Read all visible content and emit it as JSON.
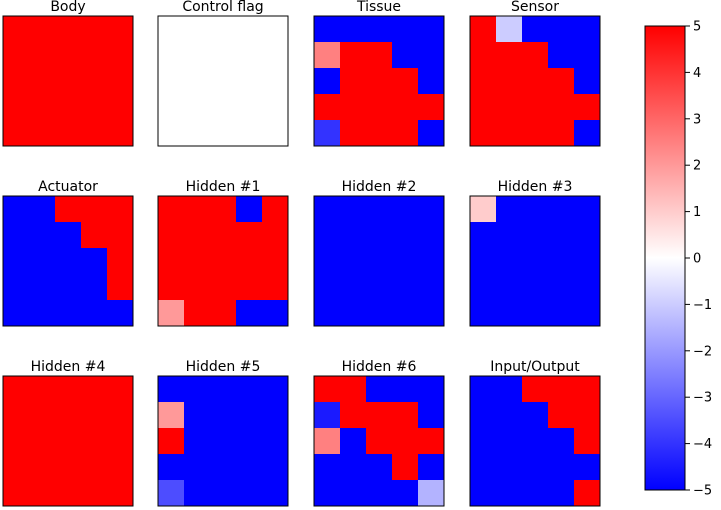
{
  "chart_data": {
    "type": "heatmap",
    "colormap": "bwr",
    "value_range": [
      -5,
      5
    ],
    "colors": {
      "low": "#0000ff",
      "mid": "#ffffff",
      "high": "#ff0000"
    },
    "colorbar": {
      "ticks": [
        5,
        4,
        3,
        2,
        1,
        0,
        -1,
        -2,
        -3,
        -4,
        -5
      ],
      "tick_labels": [
        "5",
        "4",
        "3",
        "2",
        "1",
        "0",
        "−1",
        "−2",
        "−3",
        "−4",
        "−5"
      ]
    },
    "panels": [
      {
        "title": "Body",
        "grid": [
          [
            5,
            5,
            5,
            5,
            5
          ],
          [
            5,
            5,
            5,
            5,
            5
          ],
          [
            5,
            5,
            5,
            5,
            5
          ],
          [
            5,
            5,
            5,
            5,
            5
          ],
          [
            5,
            5,
            5,
            5,
            5
          ]
        ]
      },
      {
        "title": "Control flag",
        "grid": [
          [
            0,
            0,
            0,
            0,
            0
          ],
          [
            0,
            0,
            0,
            0,
            0
          ],
          [
            0,
            0,
            0,
            0,
            0
          ],
          [
            0,
            0,
            0,
            0,
            0
          ],
          [
            0,
            0,
            0,
            0,
            0
          ]
        ]
      },
      {
        "title": "Tissue",
        "grid": [
          [
            -5,
            -5,
            -5,
            -5,
            -5
          ],
          [
            2.5,
            5,
            5,
            -5,
            -5
          ],
          [
            -5,
            5,
            5,
            5,
            -5
          ],
          [
            5,
            5,
            5,
            5,
            5
          ],
          [
            -4,
            5,
            5,
            5,
            -5
          ]
        ]
      },
      {
        "title": "Sensor",
        "grid": [
          [
            5,
            -1,
            -5,
            -5,
            -5
          ],
          [
            5,
            5,
            5,
            -5,
            -5
          ],
          [
            5,
            5,
            5,
            5,
            -5
          ],
          [
            5,
            5,
            5,
            5,
            5
          ],
          [
            5,
            5,
            5,
            5,
            -5
          ]
        ]
      },
      {
        "title": "Actuator",
        "grid": [
          [
            -5,
            -5,
            5,
            5,
            5
          ],
          [
            -5,
            -5,
            -5,
            5,
            5
          ],
          [
            -5,
            -5,
            -5,
            -5,
            5
          ],
          [
            -5,
            -5,
            -5,
            -5,
            5
          ],
          [
            -5,
            -5,
            -5,
            -5,
            -5
          ]
        ]
      },
      {
        "title": "Hidden #1",
        "grid": [
          [
            5,
            5,
            5,
            -5,
            5
          ],
          [
            5,
            5,
            5,
            5,
            5
          ],
          [
            5,
            5,
            5,
            5,
            5
          ],
          [
            5,
            5,
            5,
            5,
            5
          ],
          [
            2,
            5,
            5,
            -5,
            -5
          ]
        ]
      },
      {
        "title": "Hidden #2",
        "grid": [
          [
            -5,
            -5,
            -5,
            -5,
            -5
          ],
          [
            -5,
            -5,
            -5,
            -5,
            -5
          ],
          [
            -5,
            -5,
            -5,
            -5,
            -5
          ],
          [
            -5,
            -5,
            -5,
            -5,
            -5
          ],
          [
            -5,
            -5,
            -5,
            -5,
            -5
          ]
        ]
      },
      {
        "title": "Hidden #3",
        "grid": [
          [
            1,
            -5,
            -5,
            -5,
            -5
          ],
          [
            -5,
            -5,
            -5,
            -5,
            -5
          ],
          [
            -5,
            -5,
            -5,
            -5,
            -5
          ],
          [
            -5,
            -5,
            -5,
            -5,
            -5
          ],
          [
            -5,
            -5,
            -5,
            -5,
            -5
          ]
        ]
      },
      {
        "title": "Hidden #4",
        "grid": [
          [
            5,
            5,
            5,
            5,
            5
          ],
          [
            5,
            5,
            5,
            5,
            5
          ],
          [
            5,
            5,
            5,
            5,
            5
          ],
          [
            5,
            5,
            5,
            5,
            5
          ],
          [
            5,
            5,
            5,
            5,
            5
          ]
        ]
      },
      {
        "title": "Hidden #5",
        "grid": [
          [
            -5,
            -5,
            -5,
            -5,
            -5
          ],
          [
            2,
            -5,
            -5,
            -5,
            -5
          ],
          [
            5,
            -5,
            -5,
            -5,
            -5
          ],
          [
            -5,
            -5,
            -5,
            -5,
            -5
          ],
          [
            -3.5,
            -5,
            -5,
            -5,
            -5
          ]
        ]
      },
      {
        "title": "Hidden #6",
        "grid": [
          [
            5,
            5,
            -5,
            -5,
            -5
          ],
          [
            -4.5,
            5,
            5,
            5,
            -5
          ],
          [
            2.5,
            -5,
            5,
            5,
            5
          ],
          [
            -5,
            -5,
            -5,
            5,
            -5
          ],
          [
            -5,
            -5,
            -5,
            -5,
            -1.5
          ]
        ]
      },
      {
        "title": "Input/Output",
        "grid": [
          [
            -5,
            -5,
            5,
            5,
            5
          ],
          [
            -5,
            -5,
            -5,
            5,
            5
          ],
          [
            -5,
            -5,
            -5,
            -5,
            5
          ],
          [
            -5,
            -5,
            -5,
            -5,
            -5
          ],
          [
            -5,
            -5,
            -5,
            -5,
            5
          ]
        ]
      }
    ]
  }
}
